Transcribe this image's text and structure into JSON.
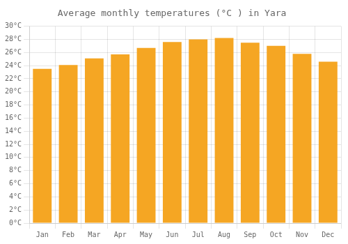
{
  "chart_data": {
    "type": "bar",
    "title": "Average monthly temperatures (°C ) in Yara",
    "categories": [
      "Jan",
      "Feb",
      "Mar",
      "Apr",
      "May",
      "Jun",
      "Jul",
      "Aug",
      "Sep",
      "Oct",
      "Nov",
      "Dec"
    ],
    "values": [
      23.5,
      24.1,
      25.1,
      25.7,
      26.7,
      27.6,
      28.0,
      28.2,
      27.5,
      27.0,
      25.8,
      24.6
    ],
    "color": "#F5A623",
    "ylim": [
      0,
      30
    ],
    "yticks": [
      {
        "value": 0,
        "label": "0°C"
      },
      {
        "value": 2,
        "label": "2°C"
      },
      {
        "value": 4,
        "label": "4°C"
      },
      {
        "value": 6,
        "label": "6°C"
      },
      {
        "value": 8,
        "label": "8°C"
      },
      {
        "value": 10,
        "label": "10°C"
      },
      {
        "value": 12,
        "label": "12°C"
      },
      {
        "value": 14,
        "label": "14°C"
      },
      {
        "value": 16,
        "label": "16°C"
      },
      {
        "value": 18,
        "label": "18°C"
      },
      {
        "value": 20,
        "label": "20°C"
      },
      {
        "value": 22,
        "label": "22°C"
      },
      {
        "value": 24,
        "label": "24°C"
      },
      {
        "value": 26,
        "label": "26°C"
      },
      {
        "value": 28,
        "label": "28°C"
      },
      {
        "value": 30,
        "label": "30°C"
      }
    ],
    "grid": true
  }
}
